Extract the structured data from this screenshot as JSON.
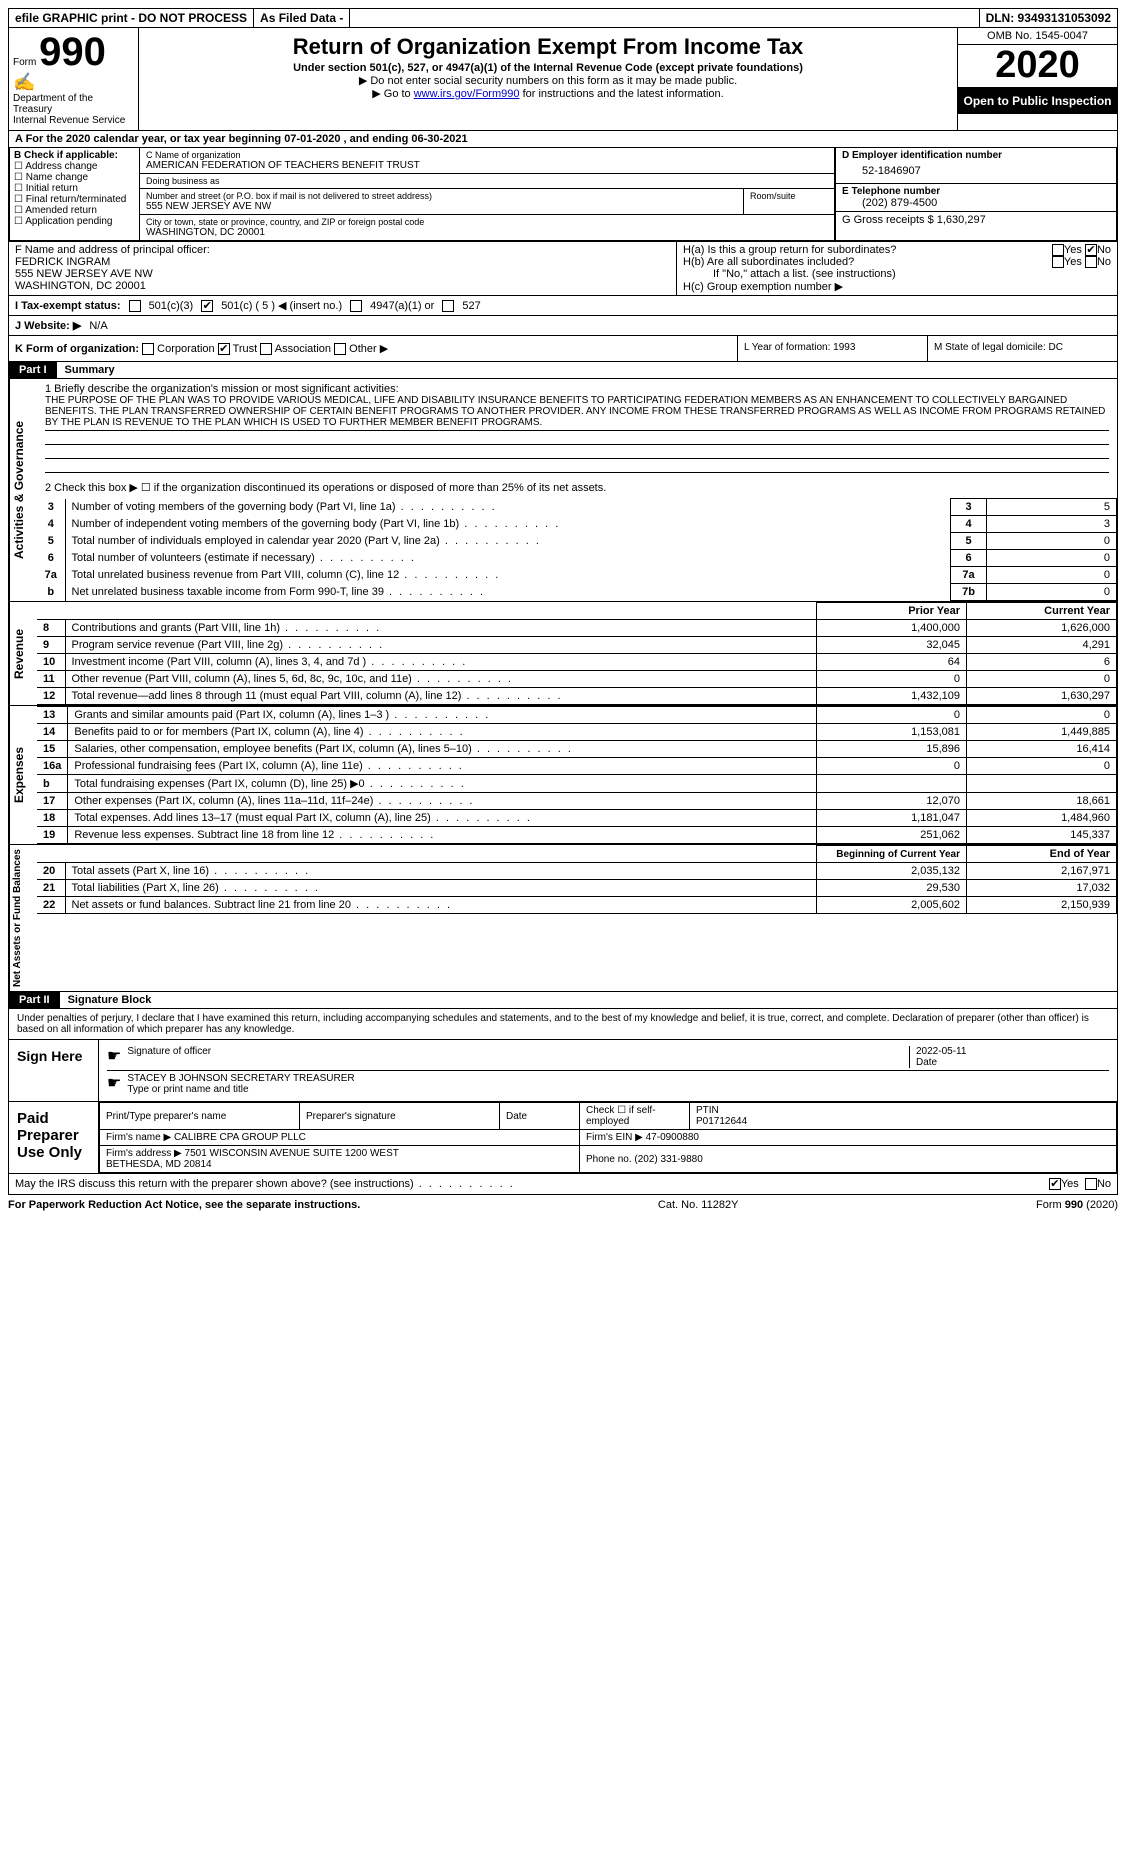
{
  "topbar": {
    "efile": "efile GRAPHIC print - DO NOT PROCESS",
    "asfiled": "As Filed Data -",
    "dln": "DLN: 93493131053092"
  },
  "header": {
    "form_prefix": "Form",
    "form_num": "990",
    "dept": "Department of the Treasury\nInternal Revenue Service",
    "title": "Return of Organization Exempt From Income Tax",
    "subtitle": "Under section 501(c), 527, or 4947(a)(1) of the Internal Revenue Code (except private foundations)",
    "warn": "▶ Do not enter social security numbers on this form as it may be made public.",
    "goto_prefix": "▶ Go to ",
    "goto_link": "www.irs.gov/Form990",
    "goto_suffix": " for instructions and the latest information.",
    "omb": "OMB No. 1545-0047",
    "year": "2020",
    "open": "Open to Public Inspection"
  },
  "rowA": "A   For the 2020 calendar year, or tax year beginning 07-01-2020   , and ending 06-30-2021",
  "B": {
    "hdr": "B Check if applicable:",
    "opts": [
      "Address change",
      "Name change",
      "Initial return",
      "Final return/terminated",
      "Amended return",
      "Application pending"
    ]
  },
  "C": {
    "name_lbl": "C Name of organization",
    "name": "AMERICAN FEDERATION OF TEACHERS BENEFIT TRUST",
    "dba_lbl": "Doing business as",
    "dba": "",
    "street_lbl": "Number and street (or P.O. box if mail is not delivered to street address)",
    "room_lbl": "Room/suite",
    "street": "555 NEW JERSEY AVE NW",
    "city_lbl": "City or town, state or province, country, and ZIP or foreign postal code",
    "city": "WASHINGTON, DC  20001"
  },
  "D": {
    "lbl": "D Employer identification number",
    "val": "52-1846907",
    "E_lbl": "E Telephone number",
    "E_val": "(202) 879-4500",
    "G": "G Gross receipts $ 1,630,297"
  },
  "F": {
    "lbl": "F  Name and address of principal officer:",
    "name": "FEDRICK INGRAM",
    "addr1": "555 NEW JERSEY AVE NW",
    "addr2": "WASHINGTON, DC  20001"
  },
  "H": {
    "a": "H(a)  Is this a group return for subordinates?",
    "b": "H(b)  Are all subordinates included?",
    "note": "If \"No,\" attach a list. (see instructions)",
    "c": "H(c)  Group exemption number ▶"
  },
  "I": {
    "lbl": "I  Tax-exempt status:",
    "c3": "501(c)(3)",
    "c": "501(c) ( 5 ) ◀ (insert no.)",
    "a4947": "4947(a)(1) or",
    "s527": "527"
  },
  "J": {
    "lbl": "J  Website: ▶",
    "val": "N/A"
  },
  "K": {
    "lbl": "K Form of organization:",
    "opts": [
      "Corporation",
      "Trust",
      "Association",
      "Other ▶"
    ],
    "L": "L Year of formation: 1993",
    "M": "M State of legal domicile: DC"
  },
  "part1": {
    "hdr": "Part I",
    "title": "Summary",
    "mission_lbl": "1  Briefly describe the organization's mission or most significant activities:",
    "mission": "THE PURPOSE OF THE PLAN WAS TO PROVIDE VARIOUS MEDICAL, LIFE AND DISABILITY INSURANCE BENEFITS TO PARTICIPATING FEDERATION MEMBERS AS AN ENHANCEMENT TO COLLECTIVELY BARGAINED BENEFITS. THE PLAN TRANSFERRED OWNERSHIP OF CERTAIN BENEFIT PROGRAMS TO ANOTHER PROVIDER. ANY INCOME FROM THESE TRANSFERRED PROGRAMS AS WELL AS INCOME FROM PROGRAMS RETAINED BY THE PLAN IS REVENUE TO THE PLAN WHICH IS USED TO FURTHER MEMBER BENEFIT PROGRAMS.",
    "line2": "2   Check this box ▶ ☐ if the organization discontinued its operations or disposed of more than 25% of its net assets.",
    "lines_a": [
      {
        "n": "3",
        "t": "Number of voting members of the governing body (Part VI, line 1a)",
        "l": "3",
        "v": "5"
      },
      {
        "n": "4",
        "t": "Number of independent voting members of the governing body (Part VI, line 1b)",
        "l": "4",
        "v": "3"
      },
      {
        "n": "5",
        "t": "Total number of individuals employed in calendar year 2020 (Part V, line 2a)",
        "l": "5",
        "v": "0"
      },
      {
        "n": "6",
        "t": "Total number of volunteers (estimate if necessary)",
        "l": "6",
        "v": "0"
      },
      {
        "n": "7a",
        "t": "Total unrelated business revenue from Part VIII, column (C), line 12",
        "l": "7a",
        "v": "0"
      },
      {
        "n": "b",
        "t": "Net unrelated business taxable income from Form 990-T, line 39",
        "l": "7b",
        "v": "0"
      }
    ],
    "col_prior": "Prior Year",
    "col_current": "Current Year",
    "revenue": [
      {
        "n": "8",
        "t": "Contributions and grants (Part VIII, line 1h)",
        "p": "1,400,000",
        "c": "1,626,000"
      },
      {
        "n": "9",
        "t": "Program service revenue (Part VIII, line 2g)",
        "p": "32,045",
        "c": "4,291"
      },
      {
        "n": "10",
        "t": "Investment income (Part VIII, column (A), lines 3, 4, and 7d )",
        "p": "64",
        "c": "6"
      },
      {
        "n": "11",
        "t": "Other revenue (Part VIII, column (A), lines 5, 6d, 8c, 9c, 10c, and 11e)",
        "p": "0",
        "c": "0"
      },
      {
        "n": "12",
        "t": "Total revenue—add lines 8 through 11 (must equal Part VIII, column (A), line 12)",
        "p": "1,432,109",
        "c": "1,630,297"
      }
    ],
    "expenses": [
      {
        "n": "13",
        "t": "Grants and similar amounts paid (Part IX, column (A), lines 1–3 )",
        "p": "0",
        "c": "0"
      },
      {
        "n": "14",
        "t": "Benefits paid to or for members (Part IX, column (A), line 4)",
        "p": "1,153,081",
        "c": "1,449,885"
      },
      {
        "n": "15",
        "t": "Salaries, other compensation, employee benefits (Part IX, column (A), lines 5–10)",
        "p": "15,896",
        "c": "16,414"
      },
      {
        "n": "16a",
        "t": "Professional fundraising fees (Part IX, column (A), line 11e)",
        "p": "0",
        "c": "0"
      },
      {
        "n": "b",
        "t": "Total fundraising expenses (Part IX, column (D), line 25) ▶0",
        "p": "",
        "c": ""
      },
      {
        "n": "17",
        "t": "Other expenses (Part IX, column (A), lines 11a–11d, 11f–24e)",
        "p": "12,070",
        "c": "18,661"
      },
      {
        "n": "18",
        "t": "Total expenses. Add lines 13–17 (must equal Part IX, column (A), line 25)",
        "p": "1,181,047",
        "c": "1,484,960"
      },
      {
        "n": "19",
        "t": "Revenue less expenses. Subtract line 18 from line 12",
        "p": "251,062",
        "c": "145,337"
      }
    ],
    "col_begin": "Beginning of Current Year",
    "col_end": "End of Year",
    "netassets": [
      {
        "n": "20",
        "t": "Total assets (Part X, line 16)",
        "p": "2,035,132",
        "c": "2,167,971"
      },
      {
        "n": "21",
        "t": "Total liabilities (Part X, line 26)",
        "p": "29,530",
        "c": "17,032"
      },
      {
        "n": "22",
        "t": "Net assets or fund balances. Subtract line 21 from line 20",
        "p": "2,005,602",
        "c": "2,150,939"
      }
    ],
    "side_ag": "Activities & Governance",
    "side_rev": "Revenue",
    "side_exp": "Expenses",
    "side_net": "Net Assets or Fund Balances"
  },
  "part2": {
    "hdr": "Part II",
    "title": "Signature Block",
    "declare": "Under penalties of perjury, I declare that I have examined this return, including accompanying schedules and statements, and to the best of my knowledge and belief, it is true, correct, and complete. Declaration of preparer (other than officer) is based on all information of which preparer has any knowledge.",
    "sign_here": "Sign Here",
    "sig_officer": "Signature of officer",
    "sig_date": "2022-05-11",
    "date_lbl": "Date",
    "officer_name": "STACEY B JOHNSON SECRETARY TREASURER",
    "type_lbl": "Type or print name and title",
    "paid_lbl": "Paid Preparer Use Only",
    "prep_name_lbl": "Print/Type preparer's name",
    "prep_sig_lbl": "Preparer's signature",
    "check_self": "Check ☐ if self-employed",
    "ptin_lbl": "PTIN",
    "ptin": "P01712644",
    "firm_name_lbl": "Firm's name    ▶",
    "firm_name": "CALIBRE CPA GROUP PLLC",
    "firm_ein_lbl": "Firm's EIN ▶",
    "firm_ein": "47-0900880",
    "firm_addr_lbl": "Firm's address ▶",
    "firm_addr": "7501 WISCONSIN AVENUE SUITE 1200 WEST\nBETHESDA, MD  20814",
    "phone_lbl": "Phone no.",
    "phone": "(202) 331-9880",
    "discuss": "May the IRS discuss this return with the preparer shown above? (see instructions)",
    "yes": "Yes",
    "no": "No"
  },
  "footer": {
    "left": "For Paperwork Reduction Act Notice, see the separate instructions.",
    "mid": "Cat. No. 11282Y",
    "right_prefix": "Form ",
    "right_form": "990",
    "right_suffix": " (2020)"
  }
}
